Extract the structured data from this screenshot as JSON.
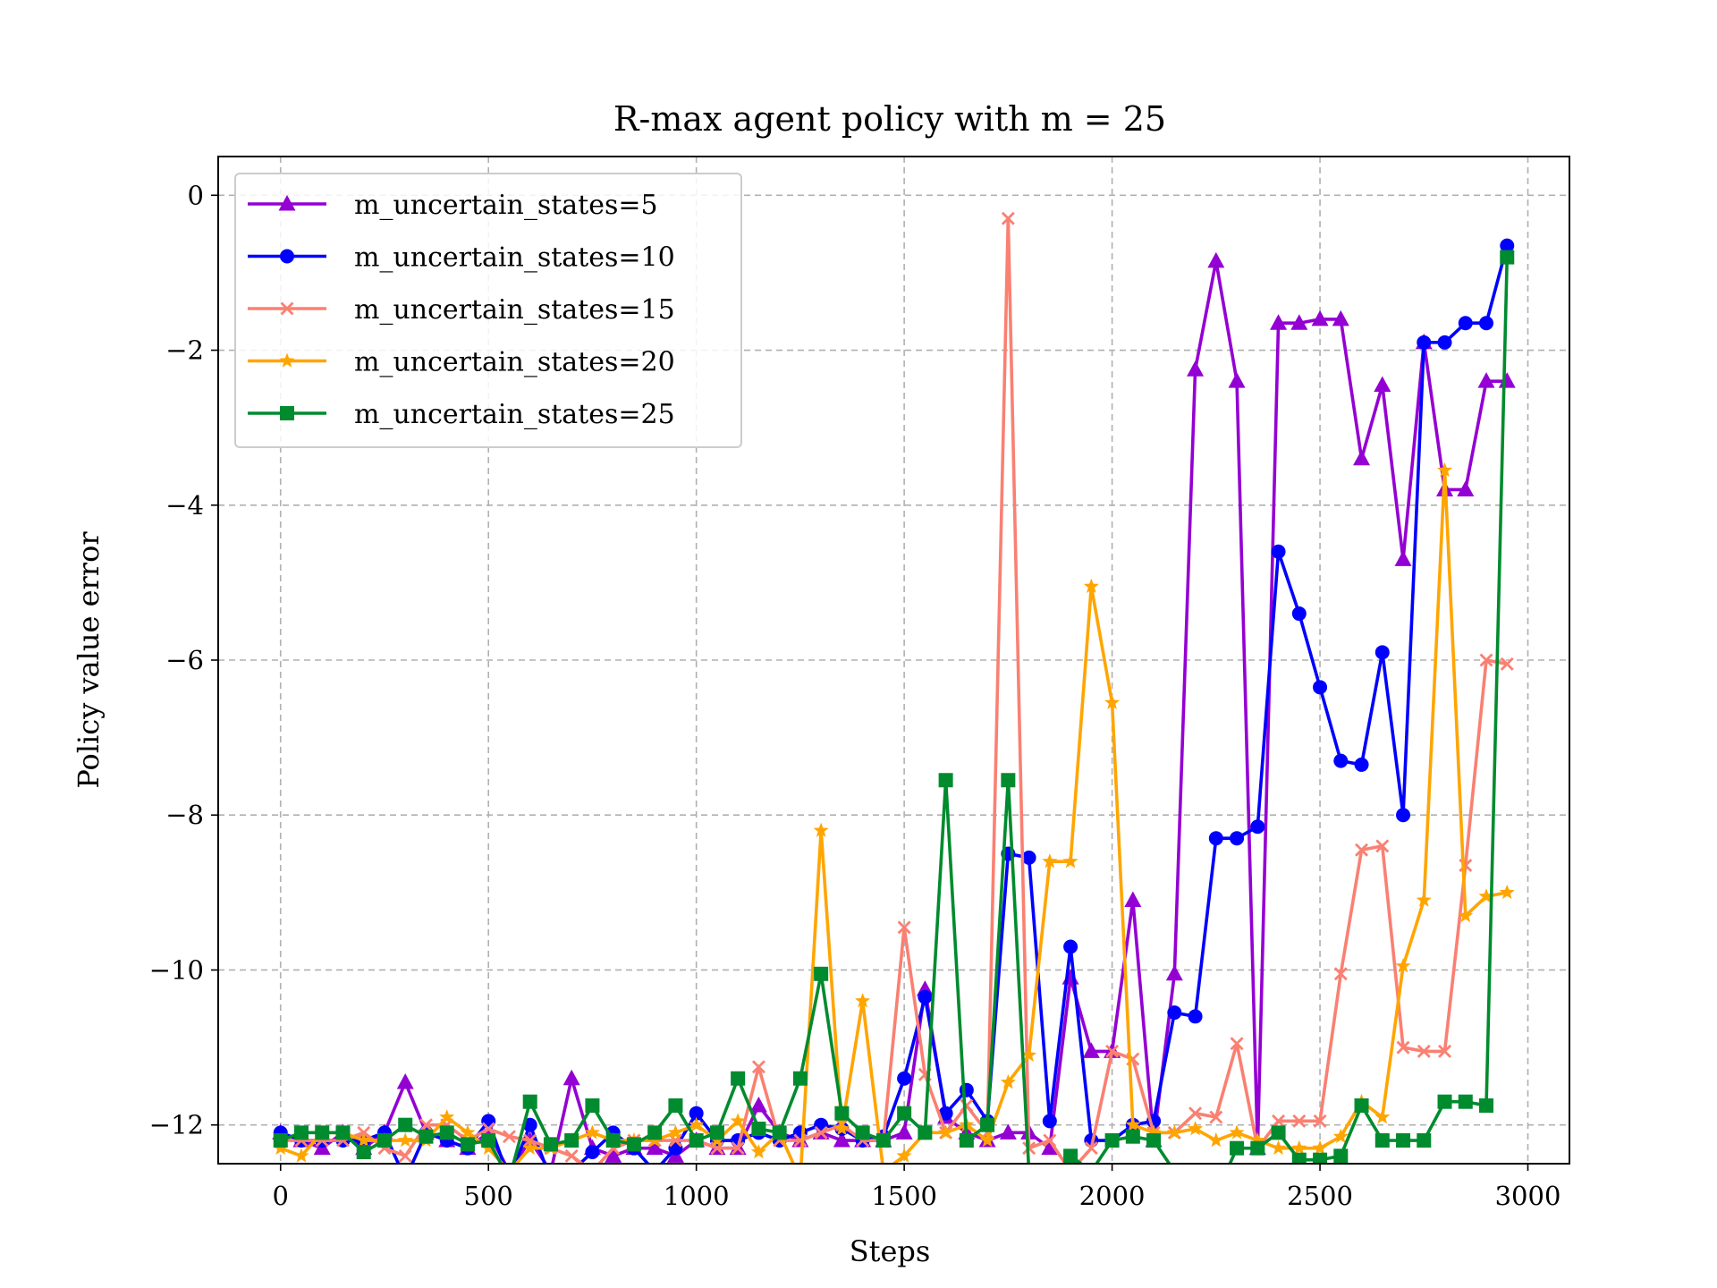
{
  "chart_data": {
    "type": "line",
    "title": "R-max agent policy with m = 25",
    "xlabel": "Steps",
    "ylabel": "Policy value error",
    "xlim": [
      -150,
      3100
    ],
    "ylim": [
      -12.5,
      0.5
    ],
    "xticks": [
      0,
      500,
      1000,
      1500,
      2000,
      2500,
      3000
    ],
    "yticks": [
      0,
      -2,
      -4,
      -6,
      -8,
      -10,
      -12
    ],
    "ytick_labels": [
      "0",
      "−2",
      "−4",
      "−6",
      "−8",
      "−10",
      "−12"
    ],
    "grid": true,
    "legend_position": "top-left",
    "x": [
      0,
      50,
      100,
      150,
      200,
      250,
      300,
      350,
      400,
      450,
      500,
      550,
      600,
      650,
      700,
      750,
      800,
      850,
      900,
      950,
      1000,
      1050,
      1100,
      1150,
      1200,
      1250,
      1300,
      1350,
      1400,
      1450,
      1500,
      1550,
      1600,
      1650,
      1700,
      1750,
      1800,
      1850,
      1900,
      1950,
      2000,
      2050,
      2100,
      2150,
      2200,
      2250,
      2300,
      2350,
      2400,
      2450,
      2500,
      2550,
      2600,
      2650,
      2700,
      2750,
      2800,
      2850,
      2900,
      2950
    ],
    "series": [
      {
        "name": "m_uncertain_states=5",
        "color": "#9400d3",
        "marker": "triangle",
        "values": [
          -12.1,
          -12.2,
          -12.3,
          -12.1,
          -12.3,
          -12.1,
          -11.45,
          -12.1,
          -12.2,
          -12.3,
          -12.1,
          -12.6,
          -12.2,
          -12.6,
          -11.4,
          -12.3,
          -12.4,
          -12.3,
          -12.3,
          -12.4,
          -12.2,
          -12.3,
          -12.3,
          -11.75,
          -12.1,
          -12.2,
          -12.1,
          -12.2,
          -12.2,
          -12.2,
          -12.1,
          -10.25,
          -11.9,
          -12.1,
          -12.2,
          -12.1,
          -12.1,
          -12.3,
          -10.1,
          -11.05,
          -11.05,
          -9.1,
          -12.2,
          -10.05,
          -2.25,
          -0.85,
          -2.4,
          -12.3,
          -1.65,
          -1.65,
          -1.6,
          -1.6,
          -3.4,
          -2.45,
          -4.7,
          -1.9,
          -3.8,
          -3.8,
          -2.4,
          -2.4
        ]
      },
      {
        "name": "m_uncertain_states=10",
        "color": "#0000ff",
        "marker": "circle",
        "values": [
          -12.1,
          -12.2,
          -12.2,
          -12.2,
          -12.2,
          -12.1,
          -12.7,
          -12.1,
          -12.2,
          -12.3,
          -11.95,
          -12.7,
          -12.0,
          -12.7,
          -12.6,
          -12.35,
          -12.1,
          -12.3,
          -12.6,
          -12.3,
          -11.85,
          -12.2,
          -12.2,
          -12.1,
          -12.2,
          -12.1,
          -12.0,
          -12.05,
          -12.2,
          -12.15,
          -11.4,
          -10.35,
          -11.85,
          -11.55,
          -11.95,
          -8.5,
          -8.55,
          -11.95,
          -9.7,
          -12.2,
          -12.2,
          -12.0,
          -11.95,
          -10.55,
          -10.6,
          -8.3,
          -8.3,
          -8.15,
          -4.6,
          -5.4,
          -6.35,
          -7.3,
          -7.35,
          -5.9,
          -8.0,
          -1.9,
          -1.9,
          -1.65,
          -1.65,
          -0.65
        ]
      },
      {
        "name": "m_uncertain_states=15",
        "color": "#fa8072",
        "marker": "x",
        "values": [
          -12.2,
          -12.2,
          -12.2,
          -12.2,
          -12.1,
          -12.3,
          -12.4,
          -12.0,
          -12.0,
          -12.2,
          -12.05,
          -12.15,
          -12.2,
          -12.3,
          -12.4,
          -12.6,
          -12.3,
          -12.2,
          -12.2,
          -12.2,
          -12.2,
          -12.3,
          -12.3,
          -11.25,
          -12.2,
          -12.2,
          -12.1,
          -12.0,
          -12.2,
          -12.2,
          -9.45,
          -11.35,
          -12.1,
          -11.75,
          -12.1,
          -0.3,
          -12.3,
          -12.2,
          -12.6,
          -12.3,
          -11.05,
          -11.15,
          -12.1,
          -12.1,
          -11.85,
          -11.9,
          -10.95,
          -12.3,
          -11.95,
          -11.95,
          -11.95,
          -10.05,
          -8.45,
          -8.4,
          -11.0,
          -11.05,
          -11.05,
          -8.65,
          -6.0,
          -6.05
        ]
      },
      {
        "name": "m_uncertain_states=20",
        "color": "#ffa500",
        "marker": "star",
        "values": [
          -12.3,
          -12.4,
          -12.1,
          -12.1,
          -12.2,
          -12.2,
          -12.2,
          -12.2,
          -11.9,
          -12.1,
          -12.3,
          -12.6,
          -12.3,
          -12.3,
          -12.2,
          -12.1,
          -12.2,
          -12.2,
          -12.2,
          -12.1,
          -12.0,
          -12.2,
          -11.95,
          -12.35,
          -12.1,
          -12.7,
          -8.2,
          -12.05,
          -10.4,
          -12.6,
          -12.4,
          -12.1,
          -12.1,
          -12.0,
          -12.2,
          -11.45,
          -11.1,
          -8.6,
          -8.6,
          -5.05,
          -6.55,
          -12.0,
          -12.1,
          -12.1,
          -12.05,
          -12.2,
          -12.1,
          -12.2,
          -12.3,
          -12.3,
          -12.3,
          -12.15,
          -11.7,
          -11.9,
          -9.95,
          -9.1,
          -3.55,
          -9.3,
          -9.05,
          -9.0
        ]
      },
      {
        "name": "m_uncertain_states=25",
        "color": "#008b2e",
        "marker": "square",
        "values": [
          -12.2,
          -12.1,
          -12.1,
          -12.1,
          -12.35,
          -12.2,
          -12.0,
          -12.15,
          -12.1,
          -12.25,
          -12.2,
          -12.7,
          -11.7,
          -12.25,
          -12.2,
          -11.75,
          -12.2,
          -12.25,
          -12.1,
          -11.75,
          -12.2,
          -12.1,
          -11.4,
          -12.05,
          -12.1,
          -11.4,
          -10.05,
          -11.85,
          -12.1,
          -12.2,
          -11.85,
          -12.1,
          -7.55,
          -12.2,
          -12.0,
          -7.55,
          -12.6,
          -12.8,
          -12.4,
          -12.6,
          -12.2,
          -12.15,
          -12.2,
          -12.6,
          -12.6,
          -12.9,
          -12.3,
          -12.3,
          -12.1,
          -12.45,
          -12.45,
          -12.4,
          -11.75,
          -12.2,
          -12.2,
          -12.2,
          -11.7,
          -11.7,
          -11.75,
          -0.8
        ]
      }
    ]
  }
}
